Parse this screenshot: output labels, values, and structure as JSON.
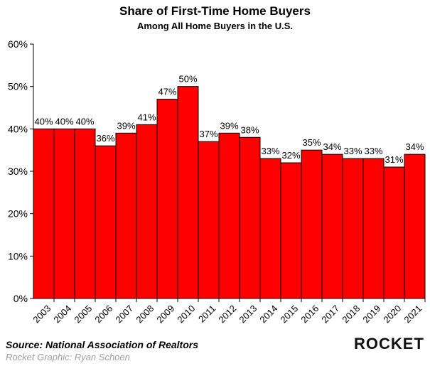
{
  "chart_data": {
    "type": "bar",
    "title": "Share of First-Time Home Buyers",
    "subtitle": "Among All Home Buyers in the U.S.",
    "categories": [
      "2003",
      "2004",
      "2005",
      "2006",
      "2007",
      "2008",
      "2009",
      "2010",
      "2011",
      "2012",
      "2013",
      "2014",
      "2015",
      "2016",
      "2017",
      "2018",
      "2019",
      "2020",
      "2021"
    ],
    "values": [
      40,
      40,
      40,
      36,
      39,
      41,
      47,
      50,
      37,
      39,
      38,
      33,
      32,
      35,
      34,
      33,
      33,
      31,
      34
    ],
    "value_labels": [
      "40%",
      "40%",
      "40%",
      "36%",
      "39%",
      "41%",
      "47%",
      "50%",
      "37%",
      "39%",
      "38%",
      "33%",
      "32%",
      "35%",
      "34%",
      "33%",
      "33%",
      "31%",
      "34%"
    ],
    "ylim": [
      0,
      60
    ],
    "yticks": [
      "0%",
      "10%",
      "20%",
      "30%",
      "40%",
      "50%",
      "60%"
    ],
    "ytick_values": [
      0,
      10,
      20,
      30,
      40,
      50,
      60
    ],
    "grid": false,
    "bar_color": "#ff0000",
    "bar_edge_color": "#000000"
  },
  "footer": {
    "source": "Source: National Association of Realtors",
    "credit": "Rocket Graphic: Ryan Schoen",
    "logo": "ROCKET"
  }
}
